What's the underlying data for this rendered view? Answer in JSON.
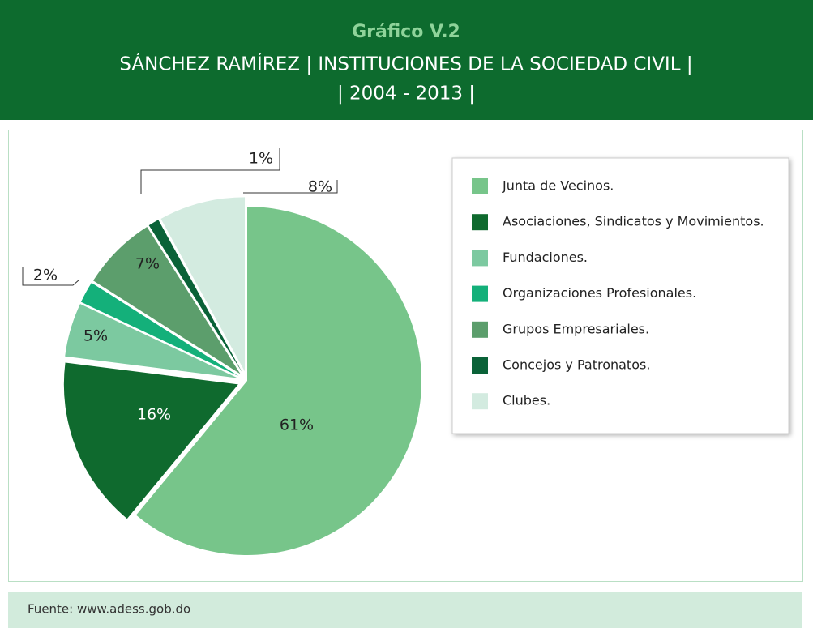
{
  "chart_data": {
    "type": "pie",
    "title": "Gráfico V.2",
    "subtitle": [
      "SÁNCHEZ RAMÍREZ | INSTITUCIONES DE LA SOCIEDAD CIVIL |",
      "| 2004 - 2013 |"
    ],
    "categories": [
      "Junta de Vecinos.",
      "Asociaciones, Sindicatos y Movimientos.",
      "Fundaciones.",
      "Organizaciones Profesionales.",
      "Grupos Empresariales.",
      "Concejos y Patronatos.",
      "Clubes."
    ],
    "values": [
      61,
      16,
      5,
      2,
      7,
      1,
      8
    ],
    "value_labels": [
      "61%",
      "16%",
      "5%",
      "2%",
      "7%",
      "1%",
      "8%"
    ],
    "colors": [
      "#77c58a",
      "#0f6a2e",
      "#7cc9a0",
      "#14b07a",
      "#5c9e6c",
      "#0a6238",
      "#d3ebe0"
    ],
    "legend": "right",
    "source": "Fuente: www.adess.gob.do"
  }
}
